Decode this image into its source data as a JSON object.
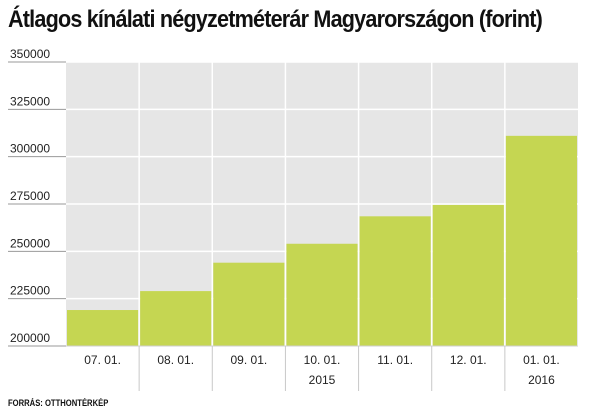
{
  "title": "Átlagos kínálati négyzetméterár Magyarországon (forint)",
  "source": "FORRÁS: OTTHONTÉRKÉP",
  "colors": {
    "bar": "#c5d652",
    "plot_background": "#e6e6e6",
    "grid": "#ffffff"
  },
  "chart_data": {
    "type": "bar",
    "title": "Átlagos kínálati négyzetméterár Magyarországon (forint)",
    "categories": [
      "07. 01.",
      "08. 01.",
      "09. 01.",
      "10. 01.",
      "11. 01.",
      "12. 01.",
      "01. 01."
    ],
    "values": [
      219000,
      229000,
      244000,
      254000,
      268500,
      274500,
      311000
    ],
    "year_labels": [
      {
        "label": "2015",
        "category_index": 3
      },
      {
        "label": "2016",
        "category_index": 6
      }
    ],
    "yticks": [
      "350000",
      "325000",
      "300000",
      "275000",
      "250000",
      "225000",
      "200000"
    ],
    "ylim": [
      200000,
      350000
    ],
    "xlabel": "",
    "ylabel": "",
    "grid": true,
    "legend": "none"
  }
}
